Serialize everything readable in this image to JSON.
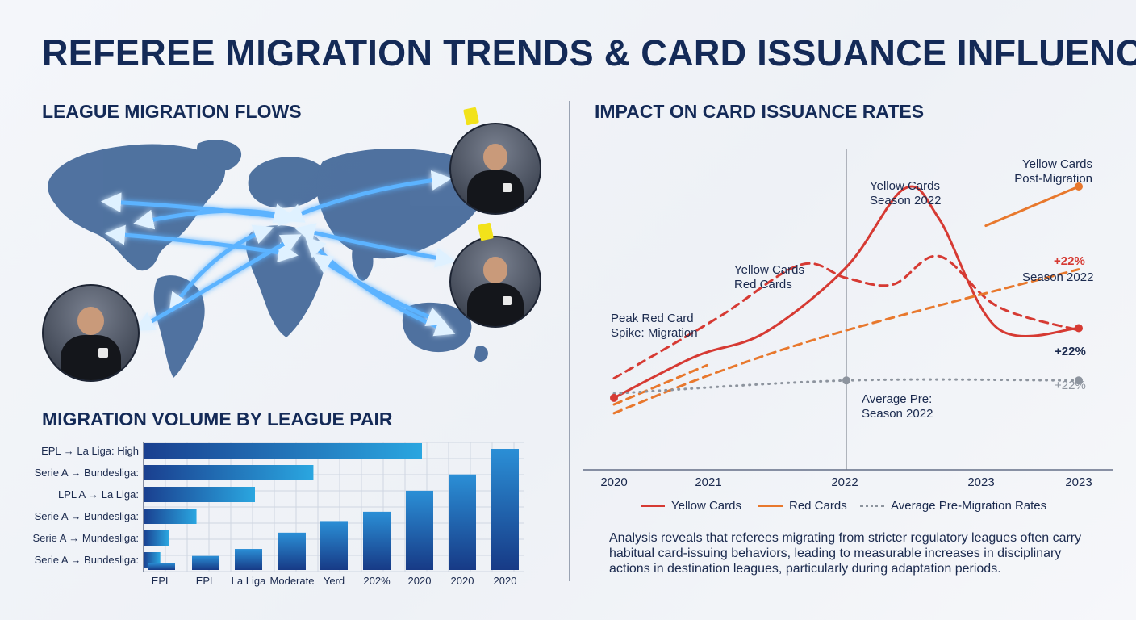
{
  "title": "REFEREE MIGRATION TRENDS & CARD ISSUANCE INFLUENCE",
  "sections": {
    "map": "LEAGUE MIGRATION FLOWS",
    "bars": "MIGRATION VOLUME BY LEAGUE PAIR",
    "lines": "IMPACT ON CARD ISSUANCE RATES"
  },
  "colors": {
    "navy": "#142a57",
    "yellow_cards": "#d63a33",
    "red_cards": "#e8782d",
    "average": "#8d949e",
    "flow": "#3d9bff"
  },
  "chart_data": [
    {
      "type": "bar",
      "orientation": "horizontal",
      "categories": [
        "EPL → La Liga: High",
        "Serie A → Bundesliga:",
        "LPL A → La Liga:",
        "Serie A → Bundesliga:",
        "Serie A → Mundesliga:",
        "Serie A → Bundesliga:"
      ],
      "values": [
        100,
        61,
        40,
        19,
        9,
        6
      ]
    },
    {
      "type": "bar",
      "orientation": "vertical",
      "categories": [
        "EPL",
        "EPL",
        "La Liga",
        "Moderate",
        "Yerd",
        "202%",
        "2020",
        "2020",
        "2020"
      ],
      "values": [
        3,
        6,
        9,
        16,
        21,
        25,
        34,
        41,
        52
      ]
    },
    {
      "type": "line",
      "x_ticks": [
        "2020",
        "2021",
        "2022",
        "2023",
        "2023"
      ],
      "series": [
        {
          "name": "Yellow Cards",
          "style": "solid",
          "color": "#d63a33",
          "x": [
            0,
            0.7,
            1.3,
            2,
            2.5,
            2.8,
            3.3,
            4
          ],
          "y": [
            3.3,
            5.2,
            6.3,
            9.3,
            12.9,
            11.5,
            6.5,
            6.5
          ]
        },
        {
          "name": "Yellow Cards",
          "style": "dashed",
          "color": "#d63a33",
          "x": [
            0,
            0.9,
            1.6,
            2,
            2.4,
            2.8,
            3.3,
            4
          ],
          "y": [
            4.2,
            7.0,
            9.4,
            8.8,
            8.5,
            9.8,
            7.5,
            6.4
          ]
        },
        {
          "name": "Red Cards",
          "style": "dashed",
          "color": "#e8782d",
          "x": [
            0,
            0.9,
            2,
            4
          ],
          "y": [
            2.6,
            4.5,
            6.4,
            9.2
          ]
        },
        {
          "name": "Red Cards",
          "style": "dashed",
          "color": "#e8782d",
          "x": [
            0,
            0.8
          ],
          "y": [
            3.0,
            4.8
          ]
        },
        {
          "name": "Yellow Cards Post-Migration",
          "style": "solid",
          "color": "#e8782d",
          "x": [
            3.2,
            4
          ],
          "y": [
            11.2,
            13.0
          ]
        },
        {
          "name": "Average Pre-Migration Rates",
          "style": "dotted",
          "color": "#8d949e",
          "x": [
            0,
            2,
            4
          ],
          "y": [
            3.5,
            4.1,
            4.1
          ]
        }
      ],
      "markers": [
        {
          "x": 0,
          "y": 3.3,
          "color": "#d63a33"
        },
        {
          "x": 4,
          "y": 6.5,
          "color": "#d63a33"
        },
        {
          "x": 4,
          "y": 13.0,
          "color": "#e8782d"
        },
        {
          "x": 2,
          "y": 4.1,
          "color": "#8d949e"
        },
        {
          "x": 4,
          "y": 4.1,
          "color": "#8d949e"
        }
      ],
      "vline_x": 2,
      "xlim": [
        0,
        4
      ],
      "ylim": [
        0,
        16
      ],
      "annotations": {
        "peak": [
          "Peak Red Card",
          "Spike: Migration"
        ],
        "yr": [
          "Yellow Cards",
          "Red Cards"
        ],
        "ys22": [
          "Yellow Cards",
          "Season 2022"
        ],
        "post": [
          "Yellow Cards",
          "Post-Migration"
        ],
        "s22": "Season 2022",
        "avg": [
          "Average Pre:",
          "Season 2022"
        ]
      },
      "pct_labels": {
        "red": "+22%",
        "black": "+22%",
        "gray": "+22%"
      },
      "legend": [
        {
          "label": "Yellow Cards",
          "style": "solid",
          "color": "#d63a33"
        },
        {
          "label": "Red Cards",
          "style": "solid",
          "color": "#e8782d"
        },
        {
          "label": "Average Pre-Migration Rates",
          "style": "dotted",
          "color": "#8d949e"
        }
      ]
    }
  ],
  "summary": "Analysis reveals that referees migrating from stricter regulatory leagues often carry habitual card-issuing behaviors, leading to measurable increases in disciplinary actions in destination leagues, particularly during adaptation periods."
}
